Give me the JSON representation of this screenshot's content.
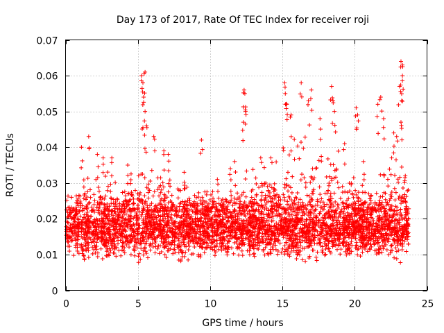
{
  "chart_data": {
    "type": "scatter",
    "title": "Day 173 of 2017, Rate Of TEC Index for receiver roji",
    "xlabel": "GPS time / hours",
    "ylabel": "ROTI / TECUs",
    "xlim": [
      0,
      25
    ],
    "ylim": [
      0,
      0.07
    ],
    "xticks": [
      0,
      5,
      10,
      15,
      20,
      25
    ],
    "xtick_labels": [
      "0",
      "5",
      "10",
      "15",
      "20",
      "25"
    ],
    "yticks": [
      0,
      0.01,
      0.02,
      0.03,
      0.04,
      0.05,
      0.06,
      0.07
    ],
    "ytick_labels": [
      "0",
      "0.01",
      "0.02",
      "0.03",
      "0.04",
      "0.05",
      "0.06",
      "0.07"
    ],
    "grid": true,
    "marker": "+",
    "marker_color": "#ff0000",
    "time_range_hours": [
      0.05,
      23.75
    ],
    "core_band": [
      0.005,
      0.025
    ],
    "envelope": [
      [
        0.0,
        0.022
      ],
      [
        1.0,
        0.033
      ],
      [
        2.0,
        0.035
      ],
      [
        3.0,
        0.034
      ],
      [
        4.0,
        0.032
      ],
      [
        4.8,
        0.036
      ],
      [
        5.3,
        0.055
      ],
      [
        5.7,
        0.04
      ],
      [
        6.5,
        0.035
      ],
      [
        7.5,
        0.03
      ],
      [
        8.5,
        0.03
      ],
      [
        9.5,
        0.03
      ],
      [
        10.5,
        0.028
      ],
      [
        11.5,
        0.033
      ],
      [
        12.4,
        0.036
      ],
      [
        13.5,
        0.034
      ],
      [
        14.5,
        0.036
      ],
      [
        15.2,
        0.045
      ],
      [
        16.0,
        0.048
      ],
      [
        17.0,
        0.046
      ],
      [
        18.0,
        0.042
      ],
      [
        19.0,
        0.04
      ],
      [
        19.8,
        0.036
      ],
      [
        20.1,
        0.03
      ],
      [
        21.0,
        0.032
      ],
      [
        22.0,
        0.038
      ],
      [
        23.0,
        0.04
      ],
      [
        23.8,
        0.03
      ]
    ],
    "peaks": [
      [
        0.4,
        0.026
      ],
      [
        1.1,
        0.04
      ],
      [
        1.6,
        0.043
      ],
      [
        2.2,
        0.038
      ],
      [
        2.6,
        0.037
      ],
      [
        3.2,
        0.037
      ],
      [
        4.3,
        0.035
      ],
      [
        5.25,
        0.06
      ],
      [
        5.35,
        0.058
      ],
      [
        5.5,
        0.061
      ],
      [
        5.4,
        0.054
      ],
      [
        5.5,
        0.05
      ],
      [
        5.6,
        0.046
      ],
      [
        6.1,
        0.043
      ],
      [
        6.8,
        0.039
      ],
      [
        7.1,
        0.038
      ],
      [
        8.2,
        0.033
      ],
      [
        9.4,
        0.042
      ],
      [
        10.5,
        0.031
      ],
      [
        11.4,
        0.034
      ],
      [
        11.7,
        0.036
      ],
      [
        12.35,
        0.056
      ],
      [
        12.4,
        0.055
      ],
      [
        12.45,
        0.05
      ],
      [
        12.3,
        0.047
      ],
      [
        13.5,
        0.037
      ],
      [
        14.2,
        0.037
      ],
      [
        15.15,
        0.058
      ],
      [
        15.2,
        0.055
      ],
      [
        15.3,
        0.052
      ],
      [
        15.6,
        0.049
      ],
      [
        16.3,
        0.058
      ],
      [
        16.8,
        0.053
      ],
      [
        17.0,
        0.056
      ],
      [
        17.6,
        0.048
      ],
      [
        18.4,
        0.057
      ],
      [
        18.5,
        0.053
      ],
      [
        18.6,
        0.05
      ],
      [
        19.3,
        0.041
      ],
      [
        20.1,
        0.051
      ],
      [
        20.2,
        0.049
      ],
      [
        20.6,
        0.036
      ],
      [
        21.6,
        0.052
      ],
      [
        21.8,
        0.054
      ],
      [
        22.0,
        0.048
      ],
      [
        22.7,
        0.044
      ],
      [
        22.9,
        0.043
      ],
      [
        23.2,
        0.064
      ],
      [
        23.3,
        0.063
      ],
      [
        23.3,
        0.06
      ],
      [
        23.25,
        0.053
      ],
      [
        23.2,
        0.047
      ],
      [
        23.1,
        0.057
      ],
      [
        23.5,
        0.032
      ]
    ]
  }
}
